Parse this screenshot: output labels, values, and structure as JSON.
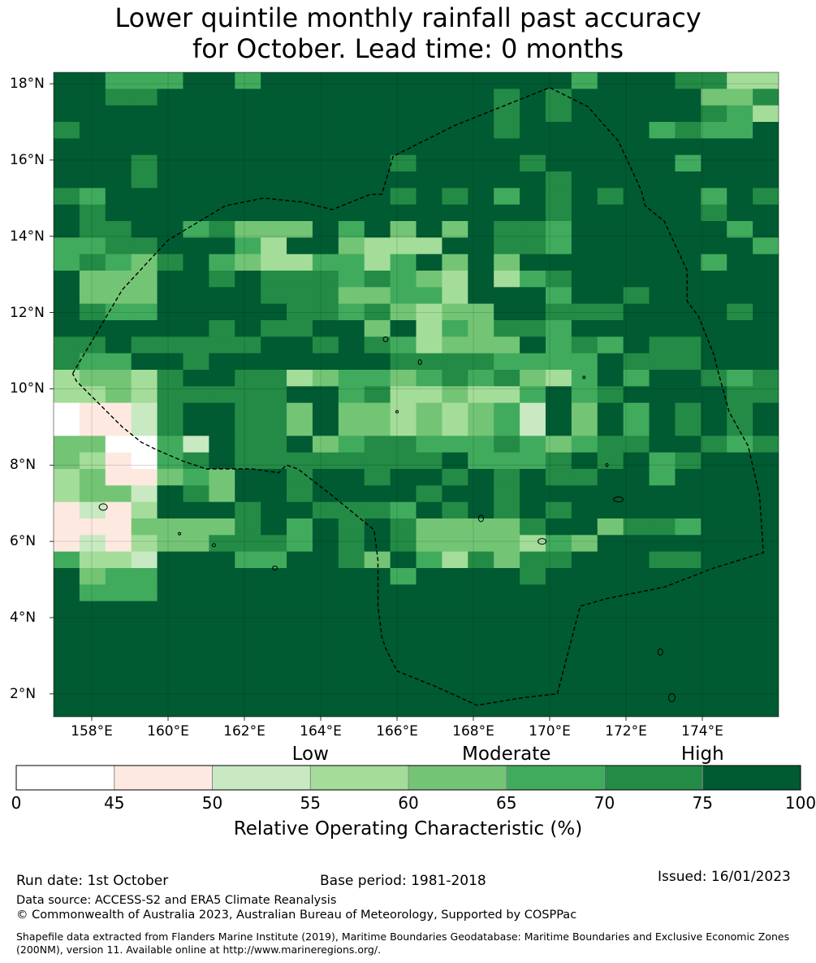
{
  "title": {
    "line1": "Lower quintile monthly rainfall past accuracy",
    "line2": "for October. Lead time: 0 months"
  },
  "map": {
    "lon_range": [
      157,
      176
    ],
    "lat_range": [
      1.4,
      18.3
    ],
    "lat_labels": [
      {
        "value": 18,
        "label": "18°N"
      },
      {
        "value": 16,
        "label": "16°N"
      },
      {
        "value": 14,
        "label": "14°N"
      },
      {
        "value": 12,
        "label": "12°N"
      },
      {
        "value": 10,
        "label": "10°N"
      },
      {
        "value": 8,
        "label": "8°N"
      },
      {
        "value": 6,
        "label": "6°N"
      },
      {
        "value": 4,
        "label": "4°N"
      },
      {
        "value": 2,
        "label": "2°N"
      }
    ],
    "lon_labels": [
      {
        "value": 158,
        "label": "158°E"
      },
      {
        "value": 160,
        "label": "160°E"
      },
      {
        "value": 162,
        "label": "162°E"
      },
      {
        "value": 164,
        "label": "164°E"
      },
      {
        "value": 166,
        "label": "166°E"
      },
      {
        "value": 168,
        "label": "168°E"
      },
      {
        "value": 170,
        "label": "170°E"
      },
      {
        "value": 172,
        "label": "172°E"
      },
      {
        "value": 174,
        "label": "174°E"
      }
    ],
    "eez_boundary_lonlat": [
      [
        157.5,
        10.4
      ],
      [
        158.8,
        12.6
      ],
      [
        160.0,
        13.9
      ],
      [
        161.5,
        14.8
      ],
      [
        162.5,
        15.0
      ],
      [
        163.5,
        14.9
      ],
      [
        164.3,
        14.7
      ],
      [
        165.3,
        15.1
      ],
      [
        165.6,
        15.1
      ],
      [
        165.9,
        16.1
      ],
      [
        167.5,
        16.9
      ],
      [
        169.0,
        17.5
      ],
      [
        170.0,
        17.9
      ],
      [
        171.0,
        17.4
      ],
      [
        171.8,
        16.5
      ],
      [
        172.4,
        15.2
      ],
      [
        172.5,
        14.8
      ],
      [
        173.0,
        14.4
      ],
      [
        173.6,
        13.1
      ],
      [
        173.6,
        12.3
      ],
      [
        173.9,
        11.9
      ],
      [
        174.3,
        10.9
      ],
      [
        174.4,
        10.5
      ],
      [
        174.7,
        9.4
      ],
      [
        175.2,
        8.5
      ],
      [
        175.5,
        7.2
      ],
      [
        175.6,
        5.7
      ],
      [
        174.3,
        5.3
      ],
      [
        173.0,
        4.8
      ],
      [
        171.5,
        4.5
      ],
      [
        170.8,
        4.3
      ],
      [
        170.2,
        2.0
      ],
      [
        169.3,
        1.9
      ],
      [
        168.1,
        1.7
      ],
      [
        167.0,
        2.2
      ],
      [
        166.0,
        2.6
      ],
      [
        165.7,
        3.2
      ],
      [
        165.6,
        3.5
      ],
      [
        165.5,
        4.3
      ],
      [
        165.5,
        5.5
      ],
      [
        165.4,
        6.3
      ],
      [
        164.3,
        7.2
      ],
      [
        163.4,
        7.9
      ],
      [
        163.1,
        8.0
      ],
      [
        162.9,
        7.8
      ],
      [
        162.2,
        7.9
      ],
      [
        161.0,
        7.9
      ],
      [
        160.4,
        8.1
      ],
      [
        159.7,
        8.4
      ],
      [
        159.3,
        8.6
      ],
      [
        158.8,
        9.0
      ],
      [
        157.6,
        10.2
      ],
      [
        157.5,
        10.4
      ]
    ]
  },
  "colorbar": {
    "categories": [
      {
        "label": "Low",
        "at": 55
      },
      {
        "label": "Moderate",
        "at": 65
      },
      {
        "label": "High",
        "at": 75
      }
    ],
    "ticks": [
      "0",
      "45",
      "50",
      "55",
      "60",
      "65",
      "70",
      "75",
      "100"
    ],
    "colors": [
      "#ffffff",
      "#fee9e0",
      "#c8e9c2",
      "#a4dc9a",
      "#74c476",
      "#41ab5d",
      "#238b45",
      "#005a32"
    ],
    "title": "Relative Operating Characteristic (%)"
  },
  "chart_data": {
    "type": "heatmap",
    "title": "Lower quintile monthly rainfall past accuracy for October. Lead time: 0 months",
    "value_name": "Relative Operating Characteristic (%)",
    "class_bounds": [
      0,
      45,
      50,
      55,
      60,
      65,
      70,
      75,
      100
    ],
    "grid_note": "class index 0-7 per cell (0 = <45%, 7 = >=75%); rows north to south",
    "rows": [
      "7755577577777777777757776633",
      "7766777777777777767677777446",
      "7777777777777777767677777653",
      "6777777777777777767777756557",
      "7777777777777777777777777777",
      "7776777777777677776777775777",
      "7776777777777777777677777777",
      "6577777777777676757676777576",
      "7677777777777777777677777677",
      "7667756444757474766577777757",
      "5566777537743337766577777775",
      "5654675433553574747777777577",
      "7444776766656543735677777777",
      "7444777766644553777577677777",
      "7655777776656434477666777767",
      "7777776766774735466577777777",
      "6676666677676534447565766777",
      "6557767777777666655557666777",
      "3443677663455456564357577656",
      "3343666667756334335756777766",
      "0112677664744343452747576767",
      "0112677664744343452747576767",
      "4400527667456655565456677656",
      "4310567666666667555676756777",
      "3411454776776776767667757777",
      "3442764776777767767777777777",
      "1213777677666576767677777777",
      "1114444675767644446774665777",
      "1213446665767644443547777777",
      "5332777557764753646677766777",
      "7455777777777577776777777777",
      "7555777777777777777777777777",
      "7777777777777777777777777777",
      "7777777777777777777777777777",
      "7777777777777777777777777777",
      "7777777777777777777777777777",
      "7777777777777777777777777777",
      "7777777777777777777777777777",
      "7777777777777777777777777777"
    ]
  },
  "footer": {
    "run_date": "Run date: 1st October",
    "base_period": "Base period: 1981-2018",
    "issued": "Issued: 16/01/2023",
    "data_source": "Data source: ACCESS-S2 and ERA5 Climate Reanalysis",
    "copyright": "© Commonwealth of Australia 2023, Australian Bureau of Meteorology, Supported by COSPPac",
    "shapefile_note": "Shapefile data extracted from Flanders Marine Institute (2019), Maritime Boundaries Geodatabase: Maritime Boundaries and Exclusive Economic Zones (200NM), version 11. Available online at http://www.marineregions.org/."
  }
}
